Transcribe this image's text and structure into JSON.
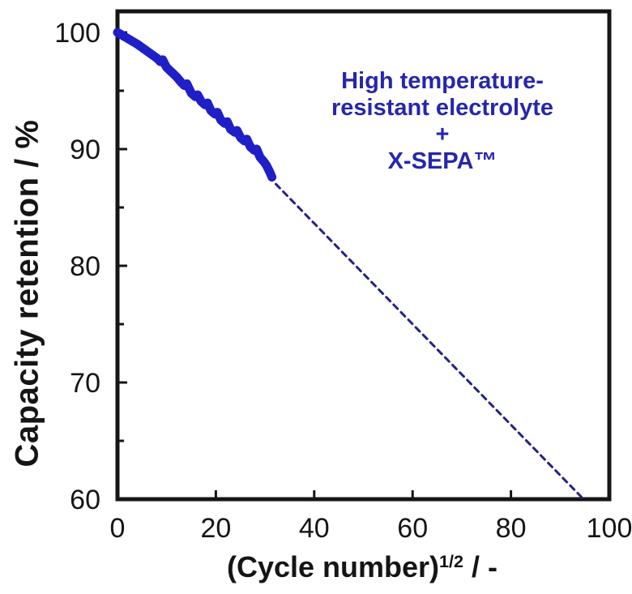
{
  "figure": {
    "background": "#ffffff",
    "frame_color": "#151515",
    "tick_label_color": "#151515"
  },
  "chart_data": {
    "type": "line",
    "title": "",
    "xlabel": {
      "prefix": "(Cycle number)",
      "sup": "1/2",
      "suffix": " / -"
    },
    "ylabel": "Capacity retention / %",
    "xlim": [
      0,
      100
    ],
    "ylim": [
      60,
      102
    ],
    "x_ticks": [
      0,
      20,
      40,
      60,
      80,
      100
    ],
    "y_ticks_major": [
      60,
      70,
      80,
      90,
      100
    ],
    "y_ticks_minor": [
      65,
      75,
      85,
      95
    ],
    "grid": false,
    "legend": "none",
    "series": [
      {
        "name": "measured-capacity-retention",
        "style": "solid",
        "color": "#1f1fc8",
        "points": [
          [
            0,
            100.0
          ],
          [
            1,
            99.75
          ],
          [
            2,
            99.5
          ],
          [
            3,
            99.25
          ],
          [
            4,
            99.0
          ],
          [
            5,
            98.7
          ],
          [
            6,
            98.4
          ],
          [
            7,
            98.1
          ],
          [
            8,
            97.8
          ],
          [
            8.7,
            97.5
          ],
          [
            9.2,
            97.65
          ],
          [
            9.6,
            97.3
          ],
          [
            10,
            97.0
          ],
          [
            11,
            96.6
          ],
          [
            12,
            96.2
          ],
          [
            13,
            95.7
          ],
          [
            13.6,
            95.45
          ],
          [
            14.1,
            95.6
          ],
          [
            15,
            94.8
          ],
          [
            15.8,
            94.5
          ],
          [
            16.3,
            94.65
          ],
          [
            17,
            94.1
          ],
          [
            17.8,
            93.8
          ],
          [
            18.3,
            93.95
          ],
          [
            19,
            93.3
          ],
          [
            19.8,
            93.0
          ],
          [
            20.3,
            93.15
          ],
          [
            21,
            92.5
          ],
          [
            21.8,
            92.2
          ],
          [
            22.3,
            92.35
          ],
          [
            23,
            91.7
          ],
          [
            23.8,
            91.45
          ],
          [
            24.3,
            91.6
          ],
          [
            25,
            91.0
          ],
          [
            25.8,
            90.7
          ],
          [
            26.3,
            90.85
          ],
          [
            27,
            90.2
          ],
          [
            27.8,
            89.9
          ],
          [
            28.3,
            90.0
          ],
          [
            29,
            89.3
          ],
          [
            29.8,
            88.9
          ],
          [
            30.3,
            88.6
          ],
          [
            31,
            88.0
          ],
          [
            31.4,
            87.6
          ]
        ]
      },
      {
        "name": "linear-extrapolation",
        "style": "dashed",
        "color": "#232387",
        "points": [
          [
            32.2,
            87.0
          ],
          [
            95,
            59.9
          ]
        ]
      }
    ],
    "annotation": {
      "lines": [
        "High temperature-",
        "resistant electrolyte",
        "+",
        "X-SEPA™"
      ],
      "color": "#2626ae"
    }
  }
}
